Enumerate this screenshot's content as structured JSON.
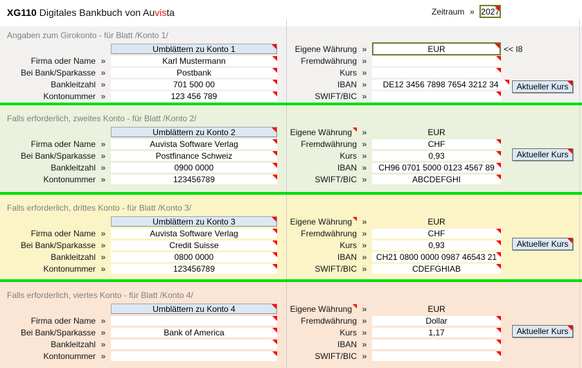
{
  "window": {
    "title_prefix": "XG110",
    "title_main": " Digitales Bankbuch von Au",
    "title_accent": "vis",
    "title_suffix": "ta"
  },
  "zeitraum": {
    "label": "Zeitraum",
    "value": "2027"
  },
  "chevron": "»",
  "field_labels": {
    "firma": "Firma oder Name",
    "bank": "Bei Bank/Sparkasse",
    "blz": "Bankleitzahl",
    "konto": "Kontonummer",
    "eigene": "Eigene Währung",
    "fremd": "Fremdwährung",
    "kurs": "Kurs",
    "iban": "IBAN",
    "swift": "SWIFT/BIC"
  },
  "buttons": {
    "aktueller_kurs": "Aktueller Kurs"
  },
  "notes": {
    "cell_ref": "<< I8"
  },
  "sections": [
    {
      "header": "Angaben zum Girokonto - für Blatt /Konto 1/",
      "flip_button": "Umblättern zu Konto 1",
      "firma": "Karl Mustermann",
      "bank": "Postbank",
      "blz": "701 500 00",
      "konto": "123 456 789",
      "eigene": "EUR",
      "fremd": "",
      "kurs": "",
      "iban": "DE12 3456 7898 7654 3212 34",
      "swift": ""
    },
    {
      "header": "Falls erforderlich, zweites Konto - für Blatt /Konto 2/",
      "flip_button": "Umblättern zu Konto 2",
      "firma": "Auvista Software Verlag",
      "bank": "Postfinance Schweiz",
      "blz": "0900 0000",
      "konto": "123456789",
      "eigene": "EUR",
      "fremd": "CHF",
      "kurs": "0,93",
      "iban": "CH96 0701 5000 0123 4567 89",
      "swift": "ABCDEFGHI"
    },
    {
      "header": "Falls erforderlich, drittes Konto - für Blatt /Konto 3/",
      "flip_button": "Umblättern zu Konto 3",
      "firma": "Auvista Software Verlag",
      "bank": "Credit Suisse",
      "blz": "0800 0000",
      "konto": "123456789",
      "eigene": "EUR",
      "fremd": "CHF",
      "kurs": "0,93",
      "iban": "CH21 0800 0000 0987 46543 21",
      "swift": "CDEFGHIAB"
    },
    {
      "header": "Falls erforderlich, viertes Konto - für Blatt /Konto 4/",
      "flip_button": "Umblättern zu Konto 4",
      "firma": "",
      "bank": "Bank of America",
      "blz": "",
      "konto": "",
      "eigene": "EUR",
      "fremd": "Dollar",
      "kurs": "1,17",
      "iban": "",
      "swift": ""
    }
  ],
  "colors": {
    "title_accent": "#ee1111",
    "comment_triangle": "#fe0000",
    "separator_green": "#00de0c",
    "section1_bg": "#f2f1f0",
    "section2_bg": "#eaf1dc",
    "section3_bg": "#fbf4c6",
    "section4_bg": "#fbe5d5",
    "flip_button_bg": "#dbe7f3",
    "kurs_button_bg": "#dce9f5",
    "named_cell_border": "#6e7f33",
    "header_text": "#7f7f7f"
  }
}
